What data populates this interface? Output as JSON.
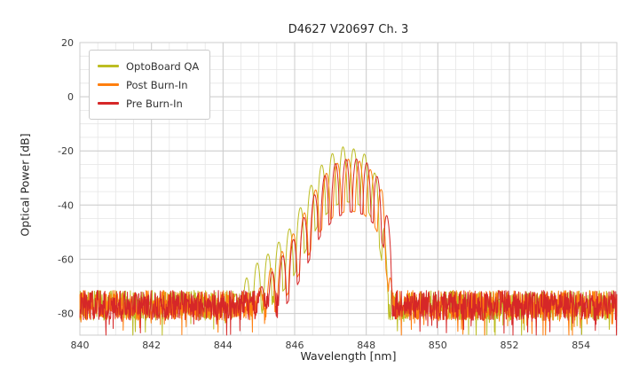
{
  "chart_data": {
    "type": "line",
    "title": "D4627 V20697 Ch. 3",
    "xlabel": "Wavelength [nm]",
    "ylabel": "Optical Power [dB]",
    "xlim": [
      840,
      855
    ],
    "ylim": [
      -88,
      20
    ],
    "xticks": [
      840,
      842,
      844,
      846,
      848,
      850,
      852,
      854
    ],
    "yticks": [
      20,
      0,
      -20,
      -40,
      -60,
      -80
    ],
    "grid": true,
    "x_minor_step": 0.5,
    "y_minor_step": 5,
    "legend_position": "upper left",
    "series": [
      {
        "name": "OptoBoard QA",
        "color": "#bcbd22",
        "noise_floor_db": -77,
        "noise_amp_db": 5.5,
        "mode_spacing_nm": 0.3,
        "mode_phase_nm": 847.35,
        "mode_depth_db": 20,
        "peak_db": -18.5,
        "peak_nm": 847.35,
        "envelope": [
          [
            844.3,
            -74
          ],
          [
            844.9,
            -62
          ],
          [
            845.35,
            -57
          ],
          [
            845.9,
            -48
          ],
          [
            846.3,
            -37
          ],
          [
            846.7,
            -26
          ],
          [
            847.05,
            -21
          ],
          [
            847.35,
            -18.5
          ],
          [
            847.75,
            -19.5
          ],
          [
            848.05,
            -22
          ],
          [
            848.3,
            -30
          ],
          [
            848.5,
            -46
          ],
          [
            848.62,
            -74
          ]
        ]
      },
      {
        "name": "Post Burn-In",
        "color": "#ff7f0e",
        "noise_floor_db": -77,
        "noise_amp_db": 5.5,
        "mode_spacing_nm": 0.31,
        "mode_phase_nm": 847.5,
        "mode_depth_db": 19,
        "peak_db": -23,
        "peak_nm": 847.5,
        "envelope": [
          [
            844.8,
            -76
          ],
          [
            845.3,
            -64
          ],
          [
            845.9,
            -52
          ],
          [
            846.3,
            -42
          ],
          [
            846.7,
            -31
          ],
          [
            847.1,
            -25
          ],
          [
            847.5,
            -23
          ],
          [
            847.9,
            -24
          ],
          [
            848.2,
            -28
          ],
          [
            848.45,
            -35
          ],
          [
            848.6,
            -50
          ],
          [
            848.75,
            -76
          ]
        ]
      },
      {
        "name": "Pre Burn-In",
        "color": "#d62728",
        "noise_floor_db": -77,
        "noise_amp_db": 5.5,
        "mode_spacing_nm": 0.295,
        "mode_phase_nm": 847.43,
        "mode_depth_db": 20,
        "peak_db": -22.5,
        "peak_nm": 847.55,
        "envelope": [
          [
            844.75,
            -76
          ],
          [
            845.35,
            -65
          ],
          [
            845.95,
            -53
          ],
          [
            846.35,
            -42
          ],
          [
            846.75,
            -30.5
          ],
          [
            847.15,
            -24.5
          ],
          [
            847.55,
            -22.5
          ],
          [
            847.95,
            -23.5
          ],
          [
            848.25,
            -27.5
          ],
          [
            848.5,
            -36
          ],
          [
            848.68,
            -52
          ],
          [
            848.82,
            -77
          ]
        ]
      }
    ]
  }
}
